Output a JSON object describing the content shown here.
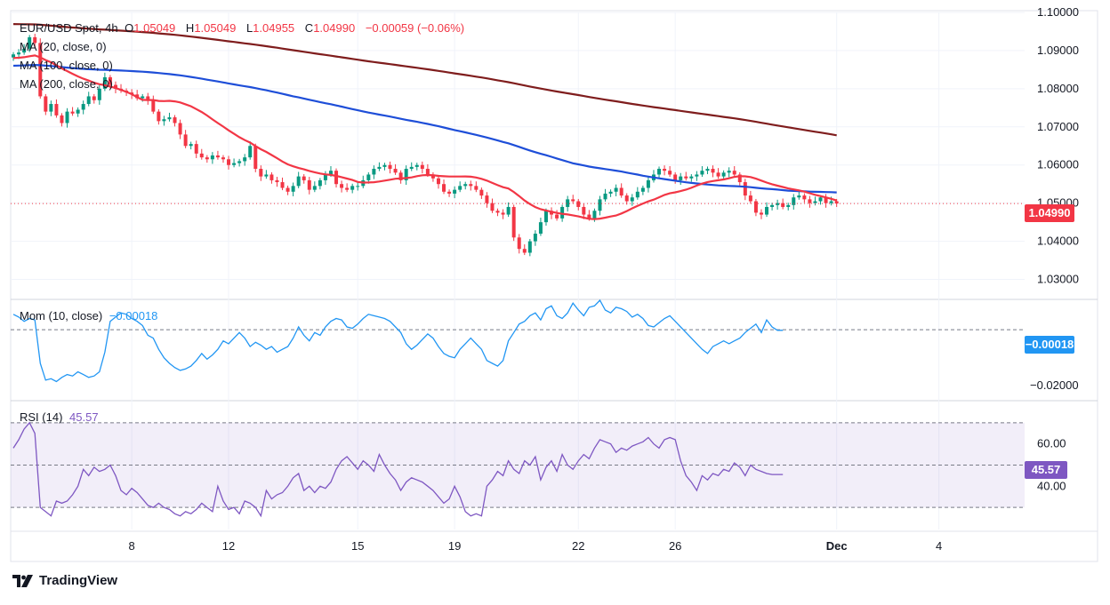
{
  "header": {
    "symbol": "EUR/USD Spot, 4h",
    "o_label": "O",
    "o_value": "1.05049",
    "h_label": "H",
    "h_value": "1.05049",
    "l_label": "L",
    "l_value": "1.04955",
    "c_label": "C",
    "c_value": "1.04990",
    "change": "−0.00059 (−0.06%)"
  },
  "ma_legend": [
    "MA (20, close, 0)",
    "MA (100, close, 0)",
    "MA (200, close, 0)"
  ],
  "mom_legend": {
    "label": "Mom (10, close)",
    "value": "−0.00018"
  },
  "rsi_legend": {
    "label": "RSI (14)",
    "value": "45.57"
  },
  "price_tag": "1.04990",
  "mom_tag": "−0.00018",
  "rsi_tag": "45.57",
  "brand": "TradingView",
  "colors": {
    "up": "#089981",
    "down": "#f23645",
    "ma20": "#f23645",
    "ma100": "#1e4ed8",
    "ma200": "#7f1d1d",
    "mom": "#2196f3",
    "rsi": "#7e57c2"
  },
  "chart_data": [
    {
      "type": "candlestick",
      "title": "EUR/USD Spot, 4h",
      "ylim": [
        1.025,
        1.1
      ],
      "y_ticks": [
        "1.10000",
        "1.09000",
        "1.08000",
        "1.07000",
        "1.06000",
        "1.05000",
        "1.04000",
        "1.03000"
      ],
      "y_tick_values": [
        1.1,
        1.09,
        1.08,
        1.07,
        1.06,
        1.05,
        1.04,
        1.03
      ],
      "x_ticks": [
        "8",
        "12",
        "15",
        "19",
        "22",
        "26",
        "Dec",
        "4"
      ],
      "x_tick_index": [
        22,
        40,
        64,
        82,
        105,
        123,
        153,
        172
      ],
      "last_close": 1.0499,
      "closes": [
        1.089,
        1.0895,
        1.0905,
        1.0935,
        1.092,
        1.078,
        1.074,
        1.076,
        1.073,
        1.071,
        1.074,
        1.0735,
        1.0745,
        1.076,
        1.078,
        1.077,
        1.08,
        1.083,
        1.081,
        1.08,
        1.0795,
        1.079,
        1.0785,
        1.0775,
        1.078,
        1.077,
        1.074,
        1.0715,
        1.072,
        1.0725,
        1.071,
        1.068,
        1.065,
        1.0655,
        1.063,
        1.062,
        1.0615,
        1.0625,
        1.062,
        1.0615,
        1.06,
        1.0605,
        1.061,
        1.062,
        1.065,
        1.059,
        1.057,
        1.0575,
        1.056,
        1.0555,
        1.054,
        1.053,
        1.0545,
        1.057,
        1.056,
        1.0535,
        1.0545,
        1.056,
        1.0575,
        1.0585,
        1.055,
        1.054,
        1.0535,
        1.0545,
        1.0545,
        1.056,
        1.0575,
        1.059,
        1.0595,
        1.06,
        1.059,
        1.058,
        1.056,
        1.059,
        1.0595,
        1.06,
        1.059,
        1.0575,
        1.0565,
        1.055,
        1.053,
        1.0525,
        1.0535,
        1.0545,
        1.055,
        1.0545,
        1.0535,
        1.052,
        1.05,
        1.048,
        1.0475,
        1.047,
        1.049,
        1.041,
        1.038,
        1.037,
        1.04,
        1.042,
        1.045,
        1.048,
        1.047,
        1.046,
        1.049,
        1.051,
        1.0505,
        1.049,
        1.047,
        1.046,
        1.048,
        1.051,
        1.0525,
        1.053,
        1.054,
        1.052,
        1.0505,
        1.0515,
        1.053,
        1.054,
        1.056,
        1.0575,
        1.059,
        1.0585,
        1.0575,
        1.056,
        1.057,
        1.0565,
        1.057,
        1.0575,
        1.0585,
        1.059,
        1.058,
        1.057,
        1.058,
        1.0585,
        1.0575,
        1.0555,
        1.052,
        1.0505,
        1.0475,
        1.047,
        1.049,
        1.0495,
        1.05,
        1.049,
        1.0495,
        1.0515,
        1.052,
        1.051,
        1.05,
        1.0505,
        1.0515,
        1.05,
        1.0505,
        1.0499
      ]
    },
    {
      "type": "line",
      "title": "Mom (10, close)",
      "ylim": [
        -0.025,
        0.0105
      ],
      "y_ticks": [
        "−0.02000"
      ],
      "y_tick_values": [
        -0.02
      ],
      "zero_line": 0,
      "values": [
        0.0055,
        0.0045,
        0.003,
        0.004,
        0.0035,
        -0.012,
        -0.018,
        -0.0175,
        -0.0185,
        -0.017,
        -0.016,
        -0.0165,
        -0.015,
        -0.016,
        -0.017,
        -0.0165,
        -0.015,
        -0.008,
        0.003,
        0.0045,
        0.006,
        0.0055,
        0.004,
        0.003,
        0.0015,
        -0.002,
        -0.003,
        -0.007,
        -0.01,
        -0.012,
        -0.0135,
        -0.0145,
        -0.014,
        -0.013,
        -0.011,
        -0.0085,
        -0.0105,
        -0.009,
        -0.007,
        -0.004,
        -0.005,
        -0.003,
        -0.001,
        -0.003,
        -0.006,
        -0.0045,
        -0.0055,
        -0.007,
        -0.006,
        -0.008,
        -0.007,
        -0.006,
        -0.003,
        0.001,
        -0.002,
        -0.004,
        -0.001,
        -0.002,
        0.001,
        0.003,
        0.004,
        0.0035,
        0.001,
        0.0005,
        0.002,
        0.004,
        0.0055,
        0.005,
        0.0045,
        0.004,
        0.003,
        0.001,
        -0.001,
        -0.005,
        -0.007,
        -0.0055,
        -0.0035,
        -0.0015,
        -0.003,
        -0.006,
        -0.0085,
        -0.0095,
        -0.01,
        -0.007,
        -0.005,
        -0.003,
        -0.005,
        -0.007,
        -0.011,
        -0.012,
        -0.013,
        -0.011,
        -0.004,
        -0.001,
        0.002,
        0.003,
        0.005,
        0.006,
        0.0035,
        0.0075,
        0.0085,
        0.005,
        0.004,
        0.006,
        0.0095,
        0.007,
        0.005,
        0.008,
        0.0085,
        0.0105,
        0.007,
        0.006,
        0.008,
        0.0075,
        0.0065,
        0.0045,
        0.0055,
        0.004,
        0.0015,
        0.001,
        0.0025,
        0.004,
        0.005,
        0.003,
        0.001,
        -0.001,
        -0.003,
        -0.005,
        -0.007,
        -0.0085,
        -0.006,
        -0.005,
        -0.004,
        -0.005,
        -0.004,
        -0.003,
        -0.001,
        0.0005,
        0.002,
        -0.001,
        0.0035,
        0.001,
        -0.0002,
        -0.0002
      ]
    },
    {
      "type": "line",
      "title": "RSI (14)",
      "ylim": [
        20,
        80
      ],
      "y_ticks": [
        "60.00",
        "40.00"
      ],
      "y_tick_values": [
        60,
        40
      ],
      "bands": [
        30,
        50,
        70
      ],
      "values": [
        58,
        62,
        67,
        70,
        65,
        30,
        28,
        26,
        33,
        32,
        33,
        36,
        40,
        48,
        45,
        49,
        47,
        48,
        50,
        45,
        38,
        36,
        39,
        37,
        34,
        31,
        30,
        32,
        30,
        29,
        27,
        26,
        28,
        27,
        29,
        32,
        30,
        28,
        40,
        33,
        29,
        30,
        27,
        33,
        32,
        30,
        26,
        38,
        34,
        36,
        37,
        40,
        44,
        46,
        38,
        40,
        37,
        40,
        39,
        42,
        48,
        52,
        54,
        51,
        48,
        52,
        50,
        47,
        55,
        50,
        46,
        43,
        38,
        42,
        44,
        43,
        42,
        40,
        38,
        35,
        32,
        34,
        40,
        35,
        28,
        26,
        27,
        26,
        40,
        43,
        47,
        45,
        52,
        48,
        46,
        52,
        50,
        54,
        43,
        49,
        52,
        47,
        55,
        50,
        48,
        52,
        55,
        53,
        58,
        62,
        61,
        60,
        56,
        58,
        57,
        59,
        60,
        61,
        63,
        60,
        58,
        62,
        63,
        62,
        52,
        45,
        42,
        38,
        45,
        43,
        46,
        45,
        48,
        47,
        51,
        49,
        45,
        50,
        48,
        47,
        46,
        45.57,
        45.57,
        45.57
      ]
    }
  ]
}
